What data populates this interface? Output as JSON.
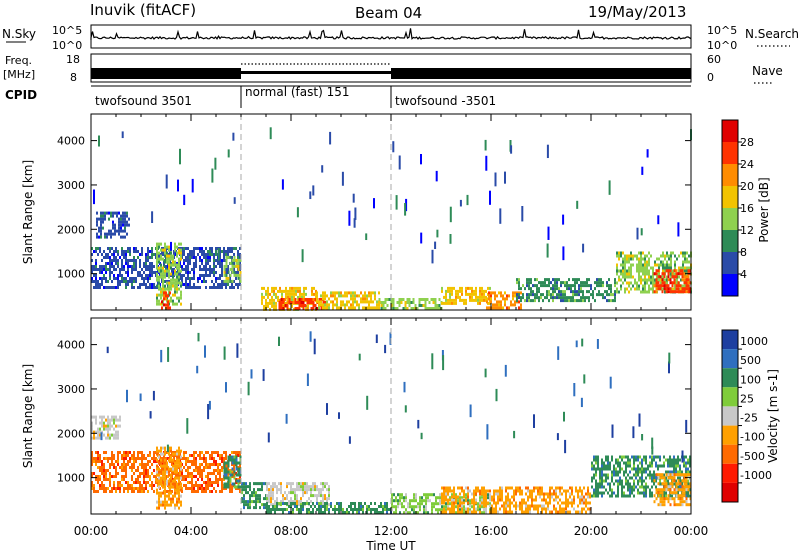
{
  "header": {
    "station": "Inuvik (fitACF)",
    "beam": "Beam 04",
    "date": "19/May/2013"
  },
  "status_panel": {
    "nsky_label": "N.Sky",
    "nsky_ticks": [
      "10^5",
      "10^0"
    ],
    "nsearch_label": "N.Search",
    "nsearch_ticks": [
      "10^5",
      "10^0"
    ],
    "freq_label_line1": "Freq.",
    "freq_label_line2": "[MHz]",
    "freq_ticks": [
      "18",
      "8"
    ],
    "nave_label": "Nave",
    "nave_ticks": [
      "60",
      "0"
    ],
    "cpid_label": "CPID",
    "cpid_segments": [
      {
        "label": "twofsound 3501",
        "start_hour": 0,
        "end_hour": 6
      },
      {
        "label": "normal (fast) 151",
        "start_hour": 6,
        "end_hour": 12
      },
      {
        "label": "twofsound -3501",
        "start_hour": 12,
        "end_hour": 24
      }
    ]
  },
  "x_axis": {
    "label": "Time UT",
    "ticks": [
      "00:00",
      "04:00",
      "08:00",
      "12:00",
      "16:00",
      "20:00",
      "00:00"
    ]
  },
  "power_colorbar": {
    "label": "Power [dB]",
    "ticks": [
      "4",
      "8",
      "12",
      "16",
      "20",
      "24",
      "28"
    ],
    "colors": [
      "#0000ff",
      "#2a4ba8",
      "#2e8b57",
      "#8fd14f",
      "#f2c300",
      "#ff8c00",
      "#ff3300",
      "#e00000"
    ]
  },
  "velocity_colorbar": {
    "label": "Velocity [m s-1]",
    "ticks": [
      "1000",
      "500",
      "100",
      "25",
      "-25",
      "-100",
      "-500",
      "-1000"
    ],
    "colors": [
      "#1e3fa0",
      "#2f6fbf",
      "#2e8b57",
      "#7fcc3a",
      "#c8c8c8",
      "#ffa000",
      "#ff6a00",
      "#ff1a00",
      "#e00000"
    ]
  },
  "chart_data": [
    {
      "type": "heatmap",
      "title": "Power",
      "xlabel": "Time UT",
      "ylabel": "Slant Range [km]",
      "xlim": [
        0,
        24
      ],
      "ylim": [
        180,
        4600
      ],
      "yticks": [
        1000,
        2000,
        3000,
        4000
      ],
      "xticks_hours": [
        0,
        4,
        8,
        12,
        16,
        20,
        24
      ],
      "colorbar_label": "Power [dB]",
      "regions": [
        {
          "t0": 0.0,
          "t1": 6.0,
          "r0": 700,
          "r1": 1600,
          "level": 1
        },
        {
          "t0": 0.2,
          "t1": 1.5,
          "r0": 1800,
          "r1": 2400,
          "level": 1
        },
        {
          "t0": 2.6,
          "t1": 3.6,
          "r0": 300,
          "r1": 1700,
          "level": 3
        },
        {
          "t0": 2.8,
          "t1": 3.2,
          "r0": 200,
          "r1": 600,
          "level": 6
        },
        {
          "t0": 5.3,
          "t1": 6.0,
          "r0": 800,
          "r1": 1400,
          "level": 3
        },
        {
          "t0": 6.8,
          "t1": 9.0,
          "r0": 200,
          "r1": 700,
          "level": 4
        },
        {
          "t0": 7.5,
          "t1": 9.5,
          "r0": 200,
          "r1": 450,
          "level": 6
        },
        {
          "t0": 9.0,
          "t1": 11.5,
          "r0": 200,
          "r1": 600,
          "level": 4
        },
        {
          "t0": 11.5,
          "t1": 14.0,
          "r0": 200,
          "r1": 450,
          "level": 3
        },
        {
          "t0": 14.0,
          "t1": 16.0,
          "r0": 300,
          "r1": 700,
          "level": 4
        },
        {
          "t0": 15.8,
          "t1": 17.2,
          "r0": 250,
          "r1": 600,
          "level": 5
        },
        {
          "t0": 17.0,
          "t1": 21.0,
          "r0": 400,
          "r1": 900,
          "level": 2
        },
        {
          "t0": 21.0,
          "t1": 24.0,
          "r0": 600,
          "r1": 1500,
          "level": 3
        },
        {
          "t0": 22.5,
          "t1": 24.0,
          "r0": 600,
          "r1": 1100,
          "level": 6
        }
      ]
    },
    {
      "type": "heatmap",
      "title": "Velocity",
      "xlabel": "Time UT",
      "ylabel": "Slant Range [km]",
      "xlim": [
        0,
        24
      ],
      "ylim": [
        180,
        4600
      ],
      "yticks": [
        1000,
        2000,
        3000,
        4000
      ],
      "xticks_hours": [
        0,
        4,
        8,
        12,
        16,
        20,
        24
      ],
      "colorbar_label": "Velocity [m s-1]",
      "regions": [
        {
          "t0": 0.0,
          "t1": 6.0,
          "r0": 700,
          "r1": 1600,
          "level": 6
        },
        {
          "t0": 0.0,
          "t1": 1.2,
          "r0": 1900,
          "r1": 2400,
          "level": 4
        },
        {
          "t0": 2.6,
          "t1": 3.6,
          "r0": 300,
          "r1": 1700,
          "level": 5
        },
        {
          "t0": 5.3,
          "t1": 6.0,
          "r0": 800,
          "r1": 1500,
          "level": 2
        },
        {
          "t0": 6.0,
          "t1": 7.0,
          "r0": 300,
          "r1": 900,
          "level": 2
        },
        {
          "t0": 7.0,
          "t1": 9.5,
          "r0": 400,
          "r1": 900,
          "level": 4
        },
        {
          "t0": 7.0,
          "t1": 12.0,
          "r0": 200,
          "r1": 450,
          "level": 2
        },
        {
          "t0": 12.0,
          "t1": 16.0,
          "r0": 200,
          "r1": 650,
          "level": 3
        },
        {
          "t0": 14.0,
          "t1": 20.0,
          "r0": 250,
          "r1": 800,
          "level": 5
        },
        {
          "t0": 20.0,
          "t1": 24.0,
          "r0": 600,
          "r1": 1500,
          "level": 2
        },
        {
          "t0": 22.5,
          "t1": 24.0,
          "r0": 400,
          "r1": 1100,
          "level": 5
        }
      ]
    }
  ]
}
